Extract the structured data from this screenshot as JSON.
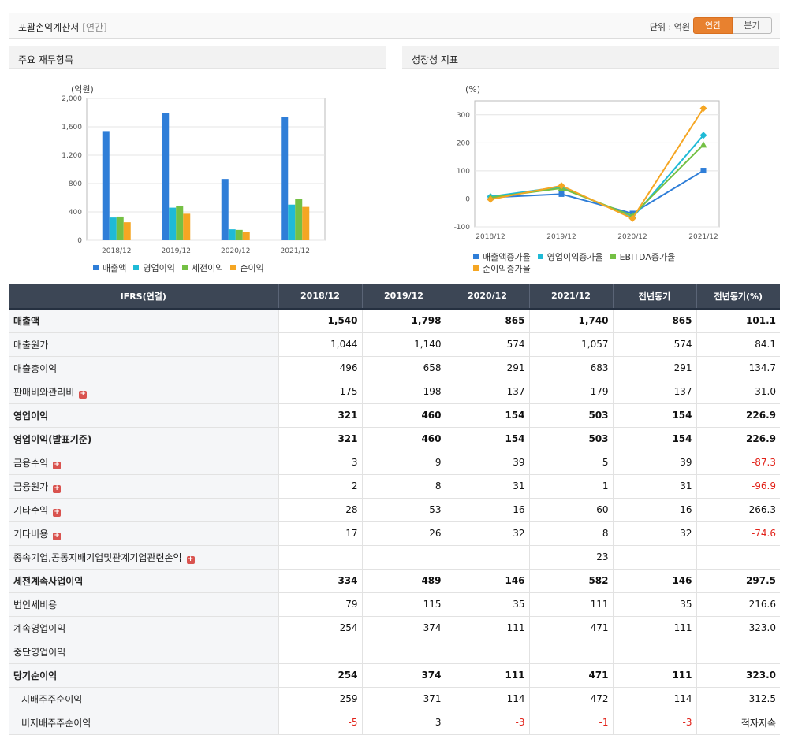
{
  "header": {
    "title": "포괄손익계산서",
    "period": "[연간]",
    "unit": "단위 : 억원",
    "toggle_annual": "연간",
    "toggle_quarter": "분기"
  },
  "panels": {
    "left_title": "주요 재무항목",
    "right_title": "성장성 지표"
  },
  "colors": {
    "accent": "#e8812f",
    "table_header": "#3c4655",
    "negative": "#e2231a"
  },
  "chart_data": [
    {
      "type": "bar",
      "ylabel": "(억원)",
      "ylim": [
        0,
        2000
      ],
      "yticks": [
        "2,000",
        "1,600",
        "1,200",
        "800",
        "400",
        "0"
      ],
      "categories": [
        "2018/12",
        "2019/12",
        "2020/12",
        "2021/12"
      ],
      "grid": true,
      "legend": "bottom",
      "series": [
        {
          "name": "매출액",
          "color": "#2f7ed8",
          "values": [
            1540,
            1798,
            865,
            1740
          ]
        },
        {
          "name": "영업이익",
          "color": "#1fbad6",
          "values": [
            321,
            460,
            154,
            503
          ]
        },
        {
          "name": "세전이익",
          "color": "#74c044",
          "values": [
            334,
            489,
            146,
            582
          ]
        },
        {
          "name": "순이익",
          "color": "#f5a623",
          "values": [
            254,
            374,
            111,
            471
          ]
        }
      ]
    },
    {
      "type": "line",
      "ylabel": "(%)",
      "ylim": [
        -100,
        350
      ],
      "yticks": [
        "300",
        "200",
        "100",
        "0",
        "-100"
      ],
      "categories": [
        "2018/12",
        "2019/12",
        "2020/12",
        "2021/12"
      ],
      "grid": true,
      "legend": "bottom",
      "series": [
        {
          "name": "매출액증가율",
          "color": "#2f7ed8",
          "marker": "square",
          "values": [
            5,
            17,
            -52,
            101
          ]
        },
        {
          "name": "영업이익증가율",
          "color": "#1fbad6",
          "marker": "diamond",
          "values": [
            8,
            43,
            -67,
            227
          ]
        },
        {
          "name": "EBITDA증가율",
          "color": "#74c044",
          "marker": "triangle",
          "values": [
            5,
            38,
            -60,
            193
          ]
        },
        {
          "name": "순이익증가율",
          "color": "#f5a623",
          "marker": "diamond",
          "values": [
            -2,
            47,
            -70,
            323
          ]
        }
      ]
    }
  ],
  "table": {
    "headers": [
      "IFRS(연결)",
      "2018/12",
      "2019/12",
      "2020/12",
      "2021/12",
      "전년동기",
      "전년동기(%)"
    ],
    "rows": [
      {
        "label": "매출액",
        "bold": true,
        "cells": [
          "1,540",
          "1,798",
          "865",
          "1,740",
          "865",
          "101.1"
        ]
      },
      {
        "label": "매출원가",
        "cells": [
          "1,044",
          "1,140",
          "574",
          "1,057",
          "574",
          "84.1"
        ]
      },
      {
        "label": "매출총이익",
        "cells": [
          "496",
          "658",
          "291",
          "683",
          "291",
          "134.7"
        ]
      },
      {
        "label": "판매비와관리비",
        "expand": true,
        "cells": [
          "175",
          "198",
          "137",
          "179",
          "137",
          "31.0"
        ]
      },
      {
        "label": "영업이익",
        "bold": true,
        "sep": true,
        "cells": [
          "321",
          "460",
          "154",
          "503",
          "154",
          "226.9"
        ]
      },
      {
        "label": "영업이익(발표기준)",
        "bold": true,
        "cells": [
          "321",
          "460",
          "154",
          "503",
          "154",
          "226.9"
        ]
      },
      {
        "label": "금융수익",
        "expand": true,
        "sep": true,
        "cells": [
          "3",
          "9",
          "39",
          "5",
          "39",
          "-87.3"
        ]
      },
      {
        "label": "금융원가",
        "expand": true,
        "cells": [
          "2",
          "8",
          "31",
          "1",
          "31",
          "-96.9"
        ]
      },
      {
        "label": "기타수익",
        "expand": true,
        "cells": [
          "28",
          "53",
          "16",
          "60",
          "16",
          "266.3"
        ]
      },
      {
        "label": "기타비용",
        "expand": true,
        "cells": [
          "17",
          "26",
          "32",
          "8",
          "32",
          "-74.6"
        ]
      },
      {
        "label": "종속기업,공동지배기업및관계기업관련손익",
        "expand": true,
        "sep": true,
        "cells": [
          "",
          "",
          "",
          "23",
          "",
          ""
        ]
      },
      {
        "label": "세전계속사업이익",
        "bold": true,
        "sep": true,
        "cells": [
          "334",
          "489",
          "146",
          "582",
          "146",
          "297.5"
        ]
      },
      {
        "label": "법인세비용",
        "cells": [
          "79",
          "115",
          "35",
          "111",
          "35",
          "216.6"
        ]
      },
      {
        "label": "계속영업이익",
        "cells": [
          "254",
          "374",
          "111",
          "471",
          "111",
          "323.0"
        ]
      },
      {
        "label": "중단영업이익",
        "cells": [
          "",
          "",
          "",
          "",
          "",
          ""
        ]
      },
      {
        "label": "당기순이익",
        "bold": true,
        "cells": [
          "254",
          "374",
          "111",
          "471",
          "111",
          "323.0"
        ]
      },
      {
        "label": "지배주주순이익",
        "sub": true,
        "cells": [
          "259",
          "371",
          "114",
          "472",
          "114",
          "312.5"
        ]
      },
      {
        "label": "비지배주주순이익",
        "sub": true,
        "cells": [
          "-5",
          "3",
          "-3",
          "-1",
          "-3",
          "적자지속"
        ]
      }
    ]
  }
}
